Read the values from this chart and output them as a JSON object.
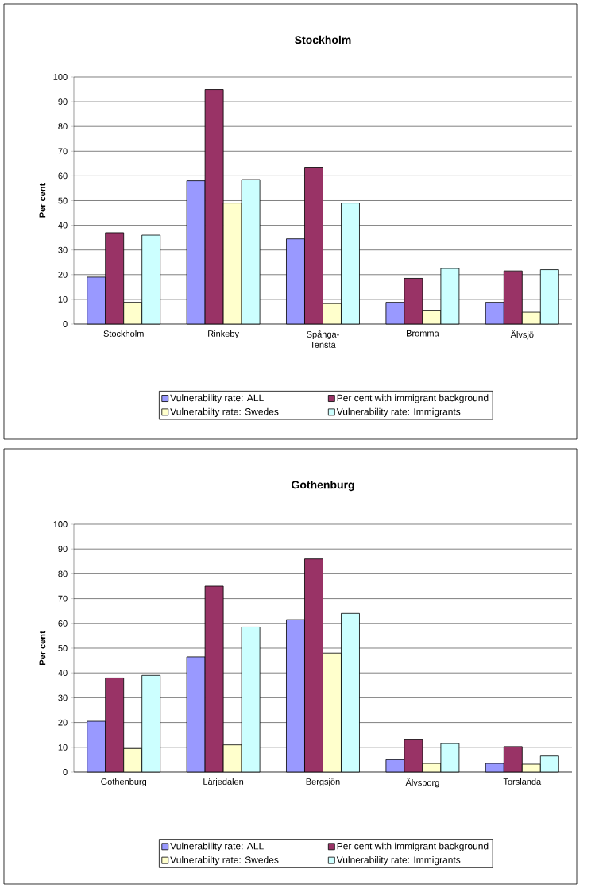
{
  "chart_data": [
    {
      "type": "bar",
      "title": "Stockholm",
      "ylabel": "Per cent",
      "categories": [
        "Stockholm",
        "Rinkeby",
        "Spånga-Tensta",
        "Bromma",
        "Älvsjö"
      ],
      "ylim": [
        0,
        100
      ],
      "yticks": [
        0,
        10,
        20,
        30,
        40,
        50,
        60,
        70,
        80,
        90,
        100
      ],
      "grid": "y",
      "legend": "bottom",
      "series": [
        {
          "name": "Vulnerability rate: ALL",
          "color": "#9999ff",
          "values": [
            19,
            58,
            34.5,
            8.8,
            8.8
          ]
        },
        {
          "name": "Per cent with immigrant background",
          "color": "#993366",
          "values": [
            37,
            95,
            63.5,
            18.5,
            21.5
          ]
        },
        {
          "name": "Vulnerabilty rate: Swedes",
          "color": "#ffffcc",
          "values": [
            8.8,
            49,
            8.3,
            5.6,
            4.8
          ]
        },
        {
          "name": "Vulnerability rate: Immigrants",
          "color": "#ccffff",
          "values": [
            36,
            58.5,
            49,
            22.5,
            22
          ]
        }
      ]
    },
    {
      "type": "bar",
      "title": "Gothenburg",
      "ylabel": "Per cent",
      "categories": [
        "Gothenburg",
        "Lärjedalen",
        "Bergsjön",
        "Älvsborg",
        "Torslanda"
      ],
      "ylim": [
        0,
        100
      ],
      "yticks": [
        0,
        10,
        20,
        30,
        40,
        50,
        60,
        70,
        80,
        90,
        100
      ],
      "grid": "y",
      "legend": "bottom",
      "series": [
        {
          "name": "Vulnerability rate: ALL",
          "color": "#9999ff",
          "values": [
            20.5,
            46.5,
            61.5,
            5,
            3.5
          ]
        },
        {
          "name": "Per cent with immigrant background",
          "color": "#993366",
          "values": [
            38,
            75,
            86,
            13,
            10.3
          ]
        },
        {
          "name": "Vulnerabilty rate: Swedes",
          "color": "#ffffcc",
          "values": [
            9.5,
            11,
            48,
            3.5,
            3.2
          ]
        },
        {
          "name": "Vulnerability rate: Immigrants",
          "color": "#ccffff",
          "values": [
            39,
            58.5,
            64,
            11.5,
            6.5
          ]
        }
      ]
    }
  ]
}
